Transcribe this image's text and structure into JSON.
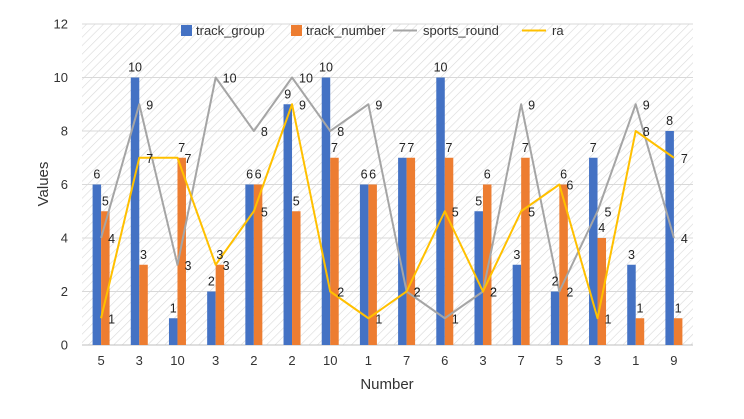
{
  "chart_data": {
    "type": "bar",
    "title": "",
    "xlabel": "Number",
    "ylabel": "Values",
    "ylim": [
      0,
      12
    ],
    "yticks": [
      0,
      2,
      4,
      6,
      8,
      10,
      12
    ],
    "grid": true,
    "legend_position": "top-center",
    "categories": [
      "5",
      "3",
      "10",
      "3",
      "2",
      "2",
      "10",
      "1",
      "7",
      "6",
      "3",
      "7",
      "5",
      "3",
      "1",
      "9"
    ],
    "series": [
      {
        "name": "track_group",
        "kind": "bar",
        "color": "#4472C4",
        "values": [
          6,
          10,
          1,
          2,
          6,
          9,
          10,
          6,
          7,
          10,
          5,
          3,
          2,
          7,
          3,
          8
        ]
      },
      {
        "name": "track_number",
        "kind": "bar",
        "color": "#ED7D31",
        "values": [
          5,
          3,
          7,
          3,
          6,
          5,
          7,
          6,
          7,
          7,
          6,
          7,
          6,
          4,
          1,
          1
        ]
      },
      {
        "name": "sports_round",
        "kind": "line",
        "color": "#A5A5A5",
        "values": [
          4,
          9,
          3,
          10,
          8,
          10,
          8,
          9,
          2,
          1,
          2,
          9,
          2,
          5,
          9,
          4
        ]
      },
      {
        "name": "ra",
        "kind": "line",
        "color": "#FFC000",
        "values": [
          1,
          7,
          7,
          3,
          5,
          9,
          2,
          1,
          2,
          5,
          2,
          5,
          6,
          1,
          8,
          7
        ]
      }
    ]
  }
}
